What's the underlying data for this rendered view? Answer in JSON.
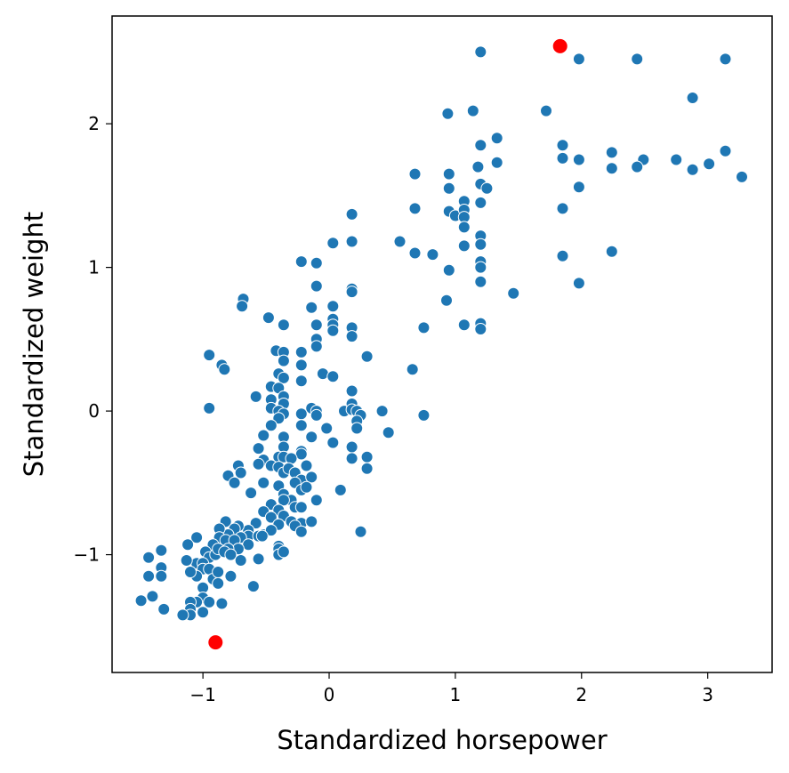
{
  "chart_data": {
    "type": "scatter",
    "xlabel": "Standardized horsepower",
    "ylabel": "Standardized weight",
    "xlim": [
      -1.72,
      3.51
    ],
    "ylim": [
      -1.82,
      2.75
    ],
    "xticks": [
      -1,
      0,
      1,
      2,
      3
    ],
    "xtick_labels": [
      "−1",
      "0",
      "1",
      "2",
      "3"
    ],
    "yticks": [
      -1,
      0,
      1,
      2
    ],
    "ytick_labels": [
      "−1",
      "0",
      "1",
      "2"
    ],
    "grid": false,
    "colors": {
      "points": "#1f77b4",
      "highlight": "#ff0000"
    },
    "series": [
      {
        "role": "points",
        "points": [
          [
            1.2,
            2.5
          ],
          [
            1.98,
            2.45
          ],
          [
            2.44,
            2.45
          ],
          [
            3.14,
            2.45
          ],
          [
            0.94,
            2.07
          ],
          [
            1.14,
            2.09
          ],
          [
            1.72,
            2.09
          ],
          [
            2.88,
            2.18
          ],
          [
            1.33,
            1.9
          ],
          [
            1.2,
            1.85
          ],
          [
            1.85,
            1.85
          ],
          [
            2.24,
            1.8
          ],
          [
            3.14,
            1.81
          ],
          [
            1.33,
            1.73
          ],
          [
            1.18,
            1.7
          ],
          [
            1.85,
            1.76
          ],
          [
            1.98,
            1.75
          ],
          [
            2.49,
            1.75
          ],
          [
            2.75,
            1.75
          ],
          [
            3.01,
            1.72
          ],
          [
            2.24,
            1.69
          ],
          [
            2.44,
            1.7
          ],
          [
            2.88,
            1.68
          ],
          [
            3.27,
            1.63
          ],
          [
            0.68,
            1.65
          ],
          [
            0.95,
            1.65
          ],
          [
            1.2,
            1.58
          ],
          [
            1.25,
            1.55
          ],
          [
            1.98,
            1.56
          ],
          [
            0.95,
            1.55
          ],
          [
            1.07,
            1.46
          ],
          [
            1.2,
            1.45
          ],
          [
            1.85,
            1.41
          ],
          [
            0.68,
            1.41
          ],
          [
            0.18,
            1.37
          ],
          [
            0.95,
            1.39
          ],
          [
            1.0,
            1.36
          ],
          [
            1.07,
            1.4
          ],
          [
            1.07,
            1.35
          ],
          [
            1.07,
            1.28
          ],
          [
            1.2,
            1.22
          ],
          [
            1.2,
            1.16
          ],
          [
            0.56,
            1.18
          ],
          [
            0.18,
            1.18
          ],
          [
            0.03,
            1.17
          ],
          [
            1.07,
            1.15
          ],
          [
            0.68,
            1.1
          ],
          [
            0.82,
            1.09
          ],
          [
            1.85,
            1.08
          ],
          [
            2.24,
            1.11
          ],
          [
            1.2,
            1.04
          ],
          [
            1.2,
            1.0
          ],
          [
            -0.22,
            1.04
          ],
          [
            -0.1,
            1.03
          ],
          [
            0.95,
            0.98
          ],
          [
            1.2,
            0.9
          ],
          [
            1.98,
            0.89
          ],
          [
            -0.1,
            0.87
          ],
          [
            0.18,
            0.85
          ],
          [
            0.18,
            0.83
          ],
          [
            1.46,
            0.82
          ],
          [
            -0.68,
            0.78
          ],
          [
            -0.69,
            0.73
          ],
          [
            0.93,
            0.77
          ],
          [
            -0.14,
            0.72
          ],
          [
            0.03,
            0.73
          ],
          [
            -0.48,
            0.65
          ],
          [
            0.03,
            0.64
          ],
          [
            0.03,
            0.6
          ],
          [
            -0.36,
            0.6
          ],
          [
            -0.1,
            0.6
          ],
          [
            1.07,
            0.6
          ],
          [
            1.2,
            0.61
          ],
          [
            1.2,
            0.57
          ],
          [
            0.03,
            0.56
          ],
          [
            0.18,
            0.58
          ],
          [
            0.18,
            0.52
          ],
          [
            0.75,
            0.58
          ],
          [
            -0.1,
            0.5
          ],
          [
            -0.1,
            0.45
          ],
          [
            -0.22,
            0.41
          ],
          [
            -0.42,
            0.42
          ],
          [
            -0.36,
            0.41
          ],
          [
            0.3,
            0.38
          ],
          [
            -0.95,
            0.39
          ],
          [
            -0.85,
            0.32
          ],
          [
            -0.83,
            0.29
          ],
          [
            -0.36,
            0.35
          ],
          [
            -0.22,
            0.32
          ],
          [
            0.66,
            0.29
          ],
          [
            -0.4,
            0.26
          ],
          [
            -0.05,
            0.26
          ],
          [
            0.03,
            0.24
          ],
          [
            -0.22,
            0.21
          ],
          [
            -0.36,
            0.23
          ],
          [
            -0.46,
            0.17
          ],
          [
            -0.4,
            0.16
          ],
          [
            -0.36,
            0.1
          ],
          [
            -0.58,
            0.1
          ],
          [
            0.18,
            0.14
          ],
          [
            -0.46,
            0.08
          ],
          [
            -0.36,
            0.05
          ],
          [
            -0.46,
            0.02
          ],
          [
            -0.4,
            0.0
          ],
          [
            -0.95,
            0.02
          ],
          [
            -0.36,
            -0.02
          ],
          [
            -0.22,
            -0.02
          ],
          [
            -0.14,
            0.02
          ],
          [
            -0.1,
            0.0
          ],
          [
            0.12,
            0.0
          ],
          [
            0.18,
            0.05
          ],
          [
            0.18,
            0.01
          ],
          [
            0.22,
            0.0
          ],
          [
            0.25,
            -0.03
          ],
          [
            0.42,
            0.0
          ],
          [
            0.75,
            -0.03
          ],
          [
            -0.4,
            -0.05
          ],
          [
            -0.22,
            -0.1
          ],
          [
            -0.1,
            -0.03
          ],
          [
            0.22,
            -0.07
          ],
          [
            0.22,
            -0.12
          ],
          [
            0.47,
            -0.15
          ],
          [
            -0.02,
            -0.12
          ],
          [
            -0.46,
            -0.1
          ],
          [
            -0.52,
            -0.17
          ],
          [
            -0.36,
            -0.18
          ],
          [
            -0.14,
            -0.18
          ],
          [
            0.03,
            -0.22
          ],
          [
            0.18,
            -0.25
          ],
          [
            -0.56,
            -0.26
          ],
          [
            -0.36,
            -0.25
          ],
          [
            -0.22,
            -0.28
          ],
          [
            -0.22,
            -0.3
          ],
          [
            -0.4,
            -0.32
          ],
          [
            -0.36,
            -0.32
          ],
          [
            -0.52,
            -0.34
          ],
          [
            -0.56,
            -0.37
          ],
          [
            -0.46,
            -0.38
          ],
          [
            -0.3,
            -0.33
          ],
          [
            -0.18,
            -0.38
          ],
          [
            0.3,
            -0.32
          ],
          [
            0.18,
            -0.33
          ],
          [
            0.3,
            -0.4
          ],
          [
            -0.72,
            -0.38
          ],
          [
            -0.7,
            -0.43
          ],
          [
            -0.4,
            -0.39
          ],
          [
            -0.36,
            -0.43
          ],
          [
            -0.32,
            -0.4
          ],
          [
            -0.27,
            -0.43
          ],
          [
            -0.22,
            -0.48
          ],
          [
            -0.14,
            -0.46
          ],
          [
            -0.8,
            -0.45
          ],
          [
            -0.75,
            -0.5
          ],
          [
            -0.52,
            -0.5
          ],
          [
            -0.4,
            -0.52
          ],
          [
            -0.27,
            -0.5
          ],
          [
            -0.22,
            -0.55
          ],
          [
            -0.18,
            -0.53
          ],
          [
            0.09,
            -0.55
          ],
          [
            -0.62,
            -0.57
          ],
          [
            -0.36,
            -0.58
          ],
          [
            -0.3,
            -0.62
          ],
          [
            -0.36,
            -0.62
          ],
          [
            -0.1,
            -0.62
          ],
          [
            -0.46,
            -0.65
          ],
          [
            -0.4,
            -0.69
          ],
          [
            -0.27,
            -0.67
          ],
          [
            -0.22,
            -0.67
          ],
          [
            -0.52,
            -0.7
          ],
          [
            -0.46,
            -0.74
          ],
          [
            -0.36,
            -0.73
          ],
          [
            -0.3,
            -0.77
          ],
          [
            -0.22,
            -0.78
          ],
          [
            -0.4,
            -0.79
          ],
          [
            -0.14,
            -0.77
          ],
          [
            -0.27,
            -0.8
          ],
          [
            -0.22,
            -0.84
          ],
          [
            0.25,
            -0.84
          ],
          [
            -0.58,
            -0.78
          ],
          [
            -0.64,
            -0.83
          ],
          [
            -0.52,
            -0.86
          ],
          [
            -0.46,
            -0.83
          ],
          [
            -0.4,
            -0.94
          ],
          [
            -0.4,
            -0.96
          ],
          [
            -0.4,
            -1.0
          ],
          [
            -0.36,
            -0.98
          ],
          [
            -0.72,
            -0.8
          ],
          [
            -0.82,
            -0.77
          ],
          [
            -0.75,
            -0.82
          ],
          [
            -0.64,
            -0.87
          ],
          [
            -0.7,
            -0.88
          ],
          [
            -0.8,
            -0.86
          ],
          [
            -0.87,
            -0.82
          ],
          [
            -0.87,
            -0.88
          ],
          [
            -0.82,
            -0.9
          ],
          [
            -0.75,
            -0.9
          ],
          [
            -0.64,
            -0.93
          ],
          [
            -0.56,
            -0.87
          ],
          [
            -0.53,
            -0.87
          ],
          [
            -0.72,
            -0.96
          ],
          [
            -0.8,
            -0.96
          ],
          [
            -0.92,
            -0.93
          ],
          [
            -0.98,
            -0.98
          ],
          [
            -0.98,
            -1.05
          ],
          [
            -0.95,
            -1.02
          ],
          [
            -0.9,
            -1.0
          ],
          [
            -0.88,
            -0.96
          ],
          [
            -0.83,
            -0.98
          ],
          [
            -0.78,
            -1.0
          ],
          [
            -0.7,
            -1.04
          ],
          [
            -0.56,
            -1.03
          ],
          [
            -1.05,
            -0.88
          ],
          [
            -1.12,
            -0.93
          ],
          [
            -1.05,
            -1.06
          ],
          [
            -1.0,
            -1.06
          ],
          [
            -1.0,
            -1.1
          ],
          [
            -1.05,
            -1.15
          ],
          [
            -0.95,
            -1.1
          ],
          [
            -0.92,
            -1.17
          ],
          [
            -0.88,
            -1.12
          ],
          [
            -0.88,
            -1.2
          ],
          [
            -0.78,
            -1.15
          ],
          [
            -1.0,
            -1.23
          ],
          [
            -0.6,
            -1.22
          ],
          [
            -1.33,
            -0.97
          ],
          [
            -1.43,
            -1.02
          ],
          [
            -1.33,
            -1.09
          ],
          [
            -1.43,
            -1.15
          ],
          [
            -1.33,
            -1.15
          ],
          [
            -1.1,
            -1.12
          ],
          [
            -1.13,
            -1.04
          ],
          [
            -1.4,
            -1.29
          ],
          [
            -1.49,
            -1.32
          ],
          [
            -1.31,
            -1.38
          ],
          [
            -1.0,
            -1.3
          ],
          [
            -0.95,
            -1.33
          ],
          [
            -0.85,
            -1.34
          ],
          [
            -1.05,
            -1.33
          ],
          [
            -1.1,
            -1.33
          ],
          [
            -1.1,
            -1.38
          ],
          [
            -1.0,
            -1.4
          ],
          [
            -1.1,
            -1.42
          ],
          [
            -1.16,
            -1.42
          ]
        ]
      },
      {
        "role": "highlight",
        "points": [
          [
            1.83,
            2.54
          ],
          [
            -0.9,
            -1.61
          ]
        ]
      }
    ]
  }
}
